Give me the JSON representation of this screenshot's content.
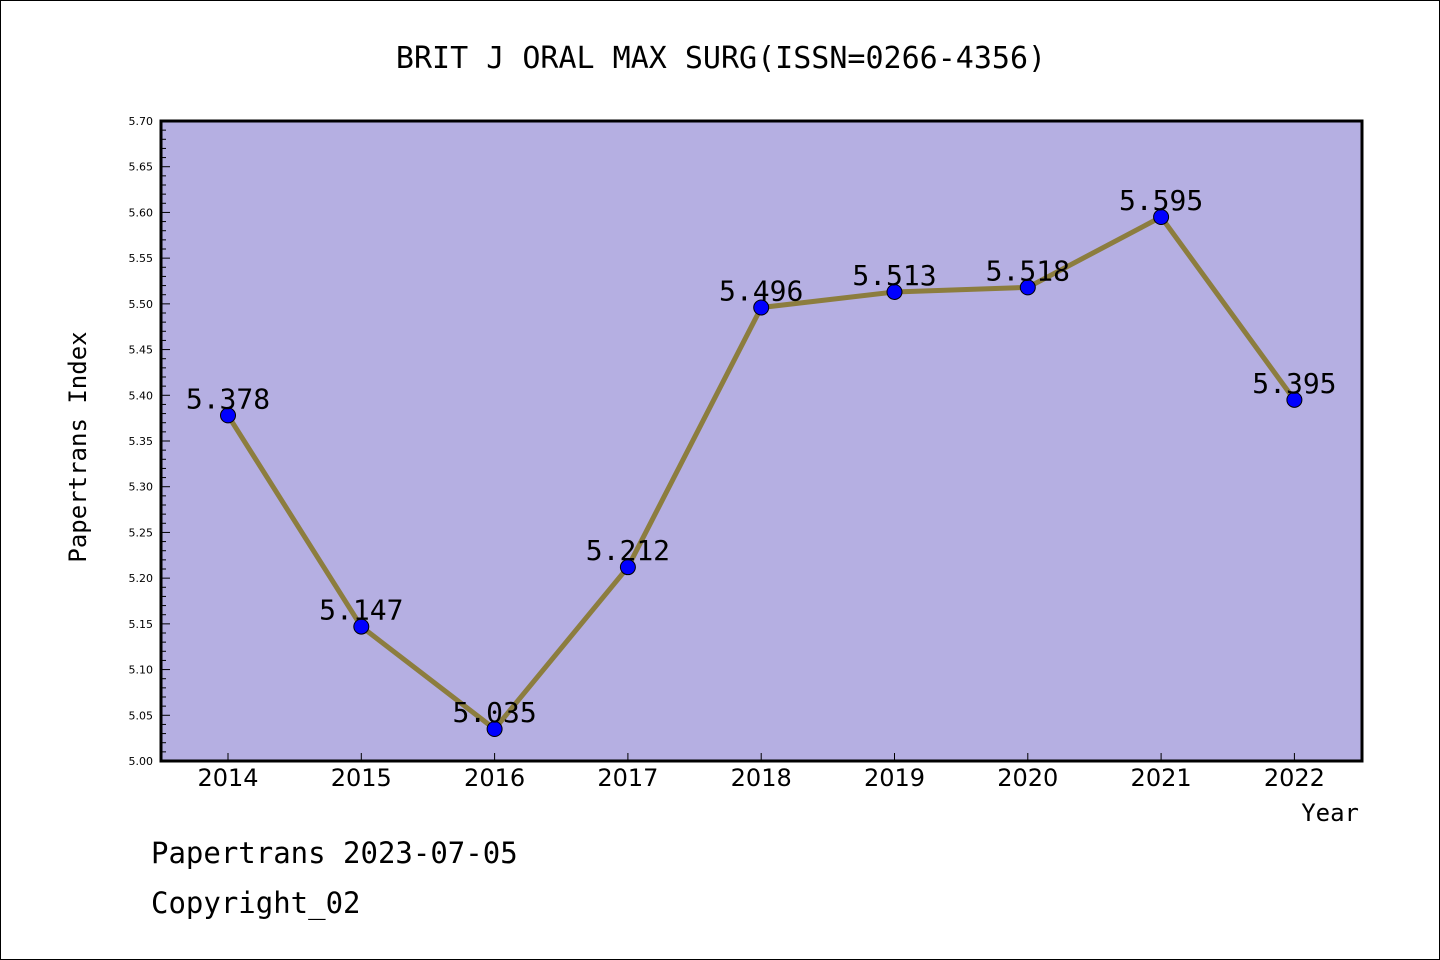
{
  "footer": {
    "line1": "Papertrans 2023-07-05",
    "line2": "Copyright_02"
  },
  "colors": {
    "plot_background": "#b5afe2",
    "line": "#8c7d3e",
    "marker": "#0000ff",
    "frame": "#000000"
  },
  "chart_data": {
    "type": "line",
    "title": "BRIT J ORAL MAX SURG(ISSN=0266-4356)",
    "xlabel": "Year",
    "ylabel": "Papertrans Index",
    "ylim": [
      5.0,
      5.7
    ],
    "ytick_labels": [
      "5.00",
      "5.05",
      "5.10",
      "5.15",
      "5.20",
      "5.25",
      "5.30",
      "5.35",
      "5.40",
      "5.45",
      "5.50",
      "5.55",
      "5.60",
      "5.65",
      "5.70"
    ],
    "categories": [
      "2014",
      "2015",
      "2016",
      "2017",
      "2018",
      "2019",
      "2020",
      "2021",
      "2022"
    ],
    "series": [
      {
        "values": [
          5.378,
          5.147,
          5.035,
          5.212,
          5.496,
          5.513,
          5.518,
          5.595,
          5.395
        ],
        "labels": [
          "5.378",
          "5.147",
          "5.035",
          "5.212",
          "5.496",
          "5.513",
          "5.518",
          "5.595",
          "5.395"
        ]
      }
    ],
    "grid": false,
    "legend": "none"
  }
}
